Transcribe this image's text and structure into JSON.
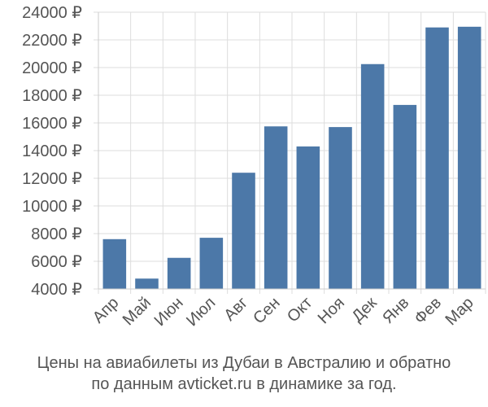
{
  "chart_data": {
    "type": "bar",
    "categories": [
      "Апр",
      "Май",
      "Июн",
      "Июл",
      "Авг",
      "Сен",
      "Окт",
      "Ноя",
      "Дек",
      "Янв",
      "Фев",
      "Мар"
    ],
    "values": [
      7600,
      4750,
      6250,
      7700,
      12400,
      15750,
      14300,
      15700,
      20250,
      17300,
      22900,
      22950
    ],
    "ylim": [
      4000,
      24000
    ],
    "yticks": [
      4000,
      6000,
      8000,
      10000,
      12000,
      14000,
      16000,
      18000,
      20000,
      22000,
      24000
    ],
    "ytick_labels": [
      "4000 ₽",
      "6000 ₽",
      "8000 ₽",
      "10000 ₽",
      "12000 ₽",
      "14000 ₽",
      "16000 ₽",
      "18000 ₽",
      "20000 ₽",
      "22000 ₽",
      "24000 ₽"
    ],
    "grid": true,
    "bar_color": "#4c78a8",
    "caption_line1": "Цены на авиабилеты из Дубаи в Австралию и обратно",
    "caption_line2": "по данным avticket.ru в динамике за год."
  }
}
